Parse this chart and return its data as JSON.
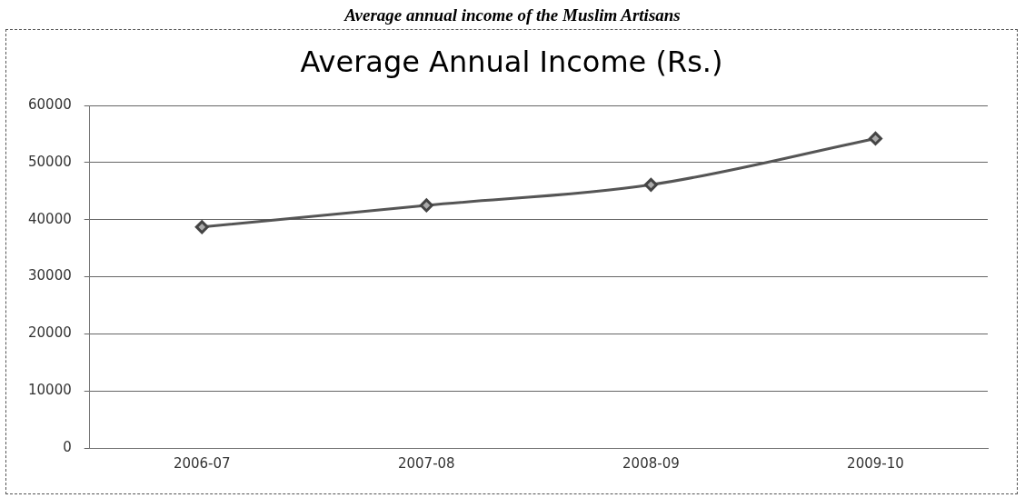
{
  "chart_data": {
    "type": "line",
    "title": "Average annual income of the Muslim Artisans",
    "subtitle": "Average Annual Income (Rs.)",
    "categories": [
      "2006-07",
      "2007-08",
      "2008-09",
      "2009-10"
    ],
    "series": [
      {
        "color": "#555555",
        "values": [
          38700,
          42500,
          46100,
          54200
        ]
      }
    ],
    "ylim": [
      0,
      60000
    ],
    "yticks": [
      0,
      10000,
      20000,
      30000,
      40000,
      50000,
      60000
    ],
    "grid": "y",
    "legend": false,
    "marker": "diamond",
    "line_style": "solid"
  }
}
